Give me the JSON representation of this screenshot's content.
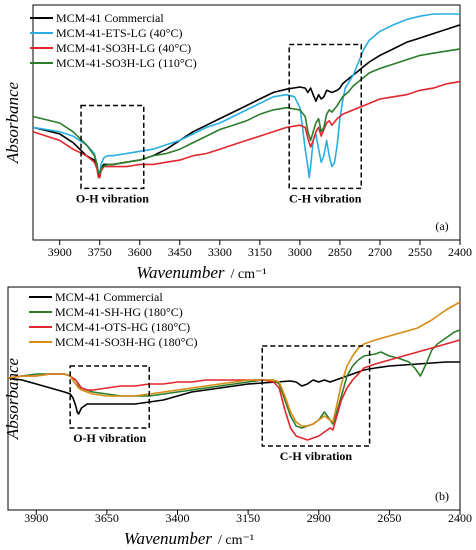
{
  "chart_data": [
    {
      "type": "line",
      "panel_label": "(a)",
      "xlabel": "Wavenumber",
      "xunit": "/ cm⁻¹",
      "ylabel": "Absorbance",
      "xlim": [
        4000,
        2400
      ],
      "ylim": [
        0,
        1
      ],
      "xticks": [
        3900,
        3750,
        3600,
        3450,
        3300,
        3150,
        3000,
        2850,
        2700,
        2550,
        2400
      ],
      "legend_position": "top-left",
      "boxes": [
        {
          "label": "O-H vibration",
          "x1": 3820,
          "x2": 3585,
          "y1": 0.2,
          "y2": 0.58
        },
        {
          "label": "C-H vibration",
          "x1": 3040,
          "x2": 2770,
          "y1": 0.2,
          "y2": 0.86
        }
      ],
      "series": [
        {
          "name": "MCM-41 Commercial",
          "color": "#000000",
          "x": [
            4000,
            3900,
            3850,
            3800,
            3770,
            3760,
            3755,
            3750,
            3745,
            3735,
            3720,
            3700,
            3650,
            3600,
            3550,
            3500,
            3450,
            3400,
            3350,
            3300,
            3250,
            3200,
            3150,
            3100,
            3050,
            3000,
            2980,
            2970,
            2960,
            2950,
            2940,
            2930,
            2920,
            2910,
            2900,
            2880,
            2860,
            2850,
            2840,
            2820,
            2800,
            2780,
            2760,
            2740,
            2700,
            2650,
            2600,
            2550,
            2500,
            2450,
            2400
          ],
          "y": [
            0.48,
            0.45,
            0.41,
            0.35,
            0.33,
            0.3,
            0.26,
            0.25,
            0.29,
            0.31,
            0.31,
            0.31,
            0.32,
            0.33,
            0.35,
            0.38,
            0.42,
            0.46,
            0.49,
            0.52,
            0.55,
            0.58,
            0.61,
            0.64,
            0.655,
            0.665,
            0.66,
            0.64,
            0.66,
            0.63,
            0.6,
            0.63,
            0.61,
            0.62,
            0.65,
            0.64,
            0.65,
            0.66,
            0.68,
            0.7,
            0.72,
            0.74,
            0.76,
            0.78,
            0.81,
            0.84,
            0.87,
            0.89,
            0.91,
            0.93,
            0.95
          ]
        },
        {
          "name": "MCM-41-ETS-LG (40°C)",
          "color": "#29aee4",
          "x": [
            4000,
            3900,
            3850,
            3800,
            3770,
            3760,
            3755,
            3750,
            3745,
            3735,
            3720,
            3700,
            3650,
            3600,
            3550,
            3500,
            3450,
            3400,
            3350,
            3300,
            3250,
            3200,
            3150,
            3100,
            3050,
            3020,
            3000,
            2990,
            2980,
            2970,
            2965,
            2960,
            2950,
            2940,
            2930,
            2920,
            2910,
            2900,
            2890,
            2880,
            2870,
            2860,
            2850,
            2840,
            2830,
            2800,
            2780,
            2760,
            2740,
            2700,
            2650,
            2600,
            2550,
            2500,
            2450,
            2400
          ],
          "y": [
            0.48,
            0.46,
            0.44,
            0.4,
            0.36,
            0.31,
            0.27,
            0.27,
            0.31,
            0.34,
            0.35,
            0.35,
            0.36,
            0.37,
            0.38,
            0.4,
            0.42,
            0.45,
            0.48,
            0.5,
            0.53,
            0.56,
            0.59,
            0.62,
            0.63,
            0.62,
            0.57,
            0.48,
            0.38,
            0.3,
            0.25,
            0.3,
            0.42,
            0.45,
            0.38,
            0.32,
            0.35,
            0.42,
            0.35,
            0.3,
            0.32,
            0.4,
            0.52,
            0.6,
            0.66,
            0.72,
            0.78,
            0.84,
            0.88,
            0.92,
            0.95,
            0.975,
            0.99,
            1.0,
            1.0,
            1.0
          ]
        },
        {
          "name": "MCM-41-SO3H-LG (40°C)",
          "color": "#e1262d",
          "x": [
            4000,
            3900,
            3850,
            3800,
            3770,
            3760,
            3755,
            3750,
            3745,
            3735,
            3720,
            3700,
            3650,
            3600,
            3550,
            3500,
            3450,
            3400,
            3350,
            3300,
            3250,
            3200,
            3150,
            3100,
            3050,
            3000,
            2980,
            2970,
            2960,
            2950,
            2940,
            2930,
            2920,
            2910,
            2900,
            2890,
            2880,
            2860,
            2850,
            2840,
            2820,
            2800,
            2780,
            2760,
            2740,
            2700,
            2650,
            2600,
            2550,
            2500,
            2450,
            2400
          ],
          "y": [
            0.46,
            0.42,
            0.38,
            0.35,
            0.32,
            0.29,
            0.25,
            0.25,
            0.28,
            0.3,
            0.3,
            0.3,
            0.3,
            0.31,
            0.31,
            0.32,
            0.33,
            0.35,
            0.36,
            0.38,
            0.4,
            0.42,
            0.44,
            0.46,
            0.48,
            0.49,
            0.48,
            0.43,
            0.39,
            0.42,
            0.46,
            0.48,
            0.44,
            0.47,
            0.5,
            0.51,
            0.49,
            0.52,
            0.53,
            0.54,
            0.55,
            0.56,
            0.57,
            0.58,
            0.59,
            0.61,
            0.62,
            0.63,
            0.65,
            0.66,
            0.68,
            0.69
          ]
        },
        {
          "name": "MCM-41-SO3H-LG (110°C)",
          "color": "#2b7d2b",
          "x": [
            4000,
            3900,
            3850,
            3800,
            3770,
            3760,
            3755,
            3750,
            3745,
            3735,
            3720,
            3700,
            3650,
            3600,
            3550,
            3500,
            3450,
            3400,
            3350,
            3300,
            3250,
            3200,
            3150,
            3100,
            3050,
            3000,
            2980,
            2970,
            2960,
            2950,
            2940,
            2930,
            2920,
            2910,
            2900,
            2890,
            2880,
            2860,
            2850,
            2840,
            2820,
            2800,
            2780,
            2760,
            2740,
            2700,
            2650,
            2600,
            2550,
            2500,
            2450,
            2400
          ],
          "y": [
            0.53,
            0.5,
            0.46,
            0.4,
            0.35,
            0.31,
            0.27,
            0.27,
            0.29,
            0.3,
            0.31,
            0.31,
            0.32,
            0.33,
            0.35,
            0.36,
            0.38,
            0.41,
            0.44,
            0.47,
            0.49,
            0.51,
            0.54,
            0.56,
            0.57,
            0.56,
            0.53,
            0.46,
            0.42,
            0.46,
            0.5,
            0.52,
            0.46,
            0.48,
            0.54,
            0.56,
            0.55,
            0.58,
            0.6,
            0.62,
            0.64,
            0.67,
            0.69,
            0.71,
            0.73,
            0.75,
            0.77,
            0.79,
            0.81,
            0.82,
            0.83,
            0.84
          ]
        }
      ]
    },
    {
      "type": "line",
      "panel_label": "(b)",
      "xlabel": "Wavenumber",
      "xunit": "/ cm⁻¹",
      "ylabel": "Absorbance",
      "xlim": [
        4000,
        2400
      ],
      "ylim": [
        0,
        1
      ],
      "xticks": [
        3900,
        3650,
        3400,
        3150,
        2900,
        2650,
        2400
      ],
      "legend_position": "top-left",
      "boxes": [
        {
          "label": "O-H vibration",
          "x1": 3780,
          "x2": 3500,
          "y1": 0.36,
          "y2": 0.67
        },
        {
          "label": "C-H vibration",
          "x1": 3100,
          "x2": 2720,
          "y1": 0.27,
          "y2": 0.77
        }
      ],
      "series": [
        {
          "name": "MCM-41 Commercial",
          "color": "#000000",
          "x": [
            4000,
            3950,
            3900,
            3850,
            3800,
            3780,
            3770,
            3760,
            3755,
            3750,
            3740,
            3720,
            3700,
            3650,
            3600,
            3550,
            3500,
            3450,
            3400,
            3350,
            3300,
            3250,
            3200,
            3150,
            3100,
            3050,
            3000,
            2980,
            2960,
            2940,
            2920,
            2900,
            2880,
            2860,
            2840,
            2820,
            2800,
            2780,
            2760,
            2740,
            2700,
            2650,
            2600,
            2550,
            2500,
            2450,
            2400
          ],
          "y": [
            0.61,
            0.6,
            0.58,
            0.56,
            0.54,
            0.53,
            0.51,
            0.47,
            0.44,
            0.43,
            0.46,
            0.48,
            0.48,
            0.48,
            0.48,
            0.48,
            0.49,
            0.5,
            0.52,
            0.54,
            0.55,
            0.56,
            0.57,
            0.58,
            0.585,
            0.59,
            0.595,
            0.59,
            0.57,
            0.58,
            0.6,
            0.59,
            0.6,
            0.59,
            0.6,
            0.61,
            0.62,
            0.63,
            0.64,
            0.65,
            0.66,
            0.67,
            0.675,
            0.68,
            0.685,
            0.69,
            0.69
          ]
        },
        {
          "name": "MCM-41-SH-HG (180°C)",
          "color": "#2b7d2b",
          "x": [
            4000,
            3950,
            3900,
            3850,
            3800,
            3780,
            3770,
            3760,
            3750,
            3740,
            3720,
            3700,
            3650,
            3600,
            3550,
            3500,
            3450,
            3400,
            3350,
            3300,
            3250,
            3200,
            3150,
            3100,
            3060,
            3040,
            3020,
            3000,
            2980,
            2960,
            2940,
            2920,
            2900,
            2880,
            2860,
            2850,
            2840,
            2820,
            2800,
            2780,
            2760,
            2740,
            2700,
            2680,
            2650,
            2620,
            2600,
            2580,
            2560,
            2540,
            2520,
            2500,
            2480,
            2460,
            2440,
            2420,
            2400
          ],
          "y": [
            0.61,
            0.62,
            0.63,
            0.63,
            0.63,
            0.62,
            0.6,
            0.58,
            0.57,
            0.56,
            0.55,
            0.54,
            0.53,
            0.52,
            0.52,
            0.52,
            0.53,
            0.54,
            0.55,
            0.56,
            0.57,
            0.58,
            0.59,
            0.6,
            0.6,
            0.58,
            0.5,
            0.42,
            0.37,
            0.36,
            0.37,
            0.38,
            0.4,
            0.44,
            0.4,
            0.38,
            0.42,
            0.52,
            0.62,
            0.67,
            0.7,
            0.72,
            0.73,
            0.74,
            0.72,
            0.71,
            0.7,
            0.69,
            0.66,
            0.62,
            0.68,
            0.75,
            0.78,
            0.8,
            0.82,
            0.84,
            0.85
          ]
        },
        {
          "name": "MCM-41-OTS-HG (180°C)",
          "color": "#e1262d",
          "x": [
            4000,
            3950,
            3900,
            3850,
            3800,
            3780,
            3770,
            3760,
            3750,
            3740,
            3720,
            3700,
            3650,
            3600,
            3550,
            3500,
            3450,
            3400,
            3350,
            3300,
            3250,
            3200,
            3150,
            3100,
            3060,
            3040,
            3020,
            3000,
            2980,
            2960,
            2940,
            2920,
            2900,
            2880,
            2860,
            2850,
            2840,
            2820,
            2800,
            2780,
            2760,
            2740,
            2700,
            2650,
            2600,
            2550,
            2500,
            2450,
            2400
          ],
          "y": [
            0.61,
            0.62,
            0.62,
            0.63,
            0.63,
            0.62,
            0.61,
            0.6,
            0.58,
            0.56,
            0.55,
            0.55,
            0.56,
            0.57,
            0.57,
            0.58,
            0.58,
            0.59,
            0.59,
            0.6,
            0.6,
            0.6,
            0.6,
            0.6,
            0.59,
            0.56,
            0.45,
            0.36,
            0.32,
            0.31,
            0.3,
            0.31,
            0.32,
            0.34,
            0.36,
            0.35,
            0.4,
            0.5,
            0.56,
            0.6,
            0.63,
            0.66,
            0.68,
            0.7,
            0.72,
            0.74,
            0.76,
            0.78,
            0.8
          ]
        },
        {
          "name": "MCM-41-SO3H-HG (180°C)",
          "color": "#d78b14",
          "x": [
            4000,
            3950,
            3900,
            3850,
            3800,
            3780,
            3770,
            3760,
            3750,
            3740,
            3720,
            3700,
            3650,
            3600,
            3550,
            3500,
            3450,
            3400,
            3350,
            3300,
            3250,
            3200,
            3150,
            3100,
            3060,
            3040,
            3020,
            3000,
            2980,
            2960,
            2940,
            2920,
            2900,
            2880,
            2860,
            2850,
            2840,
            2820,
            2800,
            2780,
            2760,
            2740,
            2700,
            2650,
            2600,
            2550,
            2500,
            2450,
            2400
          ],
          "y": [
            0.61,
            0.62,
            0.62,
            0.63,
            0.63,
            0.62,
            0.6,
            0.58,
            0.56,
            0.55,
            0.54,
            0.53,
            0.52,
            0.52,
            0.52,
            0.53,
            0.54,
            0.55,
            0.56,
            0.57,
            0.58,
            0.59,
            0.6,
            0.6,
            0.6,
            0.59,
            0.52,
            0.44,
            0.39,
            0.37,
            0.37,
            0.38,
            0.4,
            0.42,
            0.4,
            0.39,
            0.45,
            0.58,
            0.67,
            0.72,
            0.76,
            0.78,
            0.8,
            0.82,
            0.84,
            0.86,
            0.9,
            0.95,
            0.99
          ]
        }
      ]
    }
  ]
}
